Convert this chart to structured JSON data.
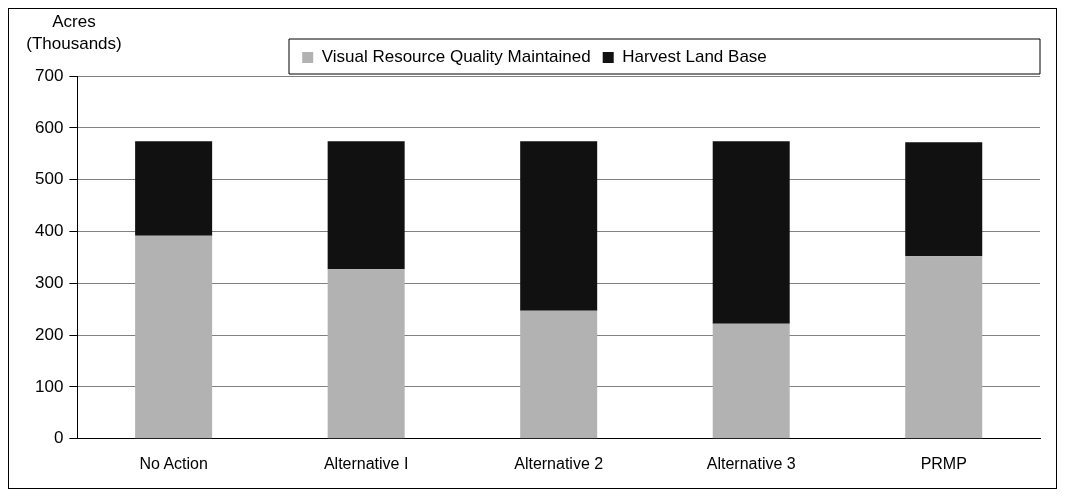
{
  "chart_data": {
    "type": "bar",
    "ylabel": "Acres (Thousands)",
    "categories": [
      "No Action",
      "Alternative I",
      "Alternative 2",
      "Alternative 3",
      "PRMP"
    ],
    "stacked": true,
    "series": [
      {
        "name": "Visual Resource Quality Maintained",
        "color": "#b2b2b2",
        "values": [
          392,
          327,
          247,
          222,
          352
        ]
      },
      {
        "name": "Harvest Land Base",
        "color": "#111111",
        "values": [
          182,
          247,
          327,
          352,
          220
        ]
      }
    ],
    "ylim": [
      0,
      700
    ],
    "yticks": [
      0,
      100,
      200,
      300,
      400,
      500,
      600,
      700
    ],
    "grid": "y",
    "legend": "top"
  }
}
